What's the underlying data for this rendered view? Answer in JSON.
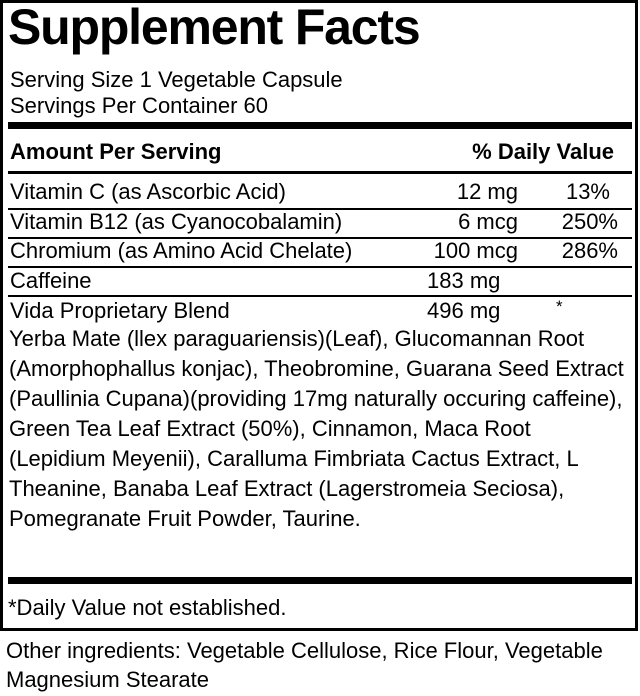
{
  "title": "Supplement Facts",
  "serving_size": "Serving Size 1 Vegetable Capsule",
  "servings_per_container": "Servings Per Container 60",
  "header": {
    "amount": "Amount Per Serving",
    "daily_value": "% Daily Value"
  },
  "rows": [
    {
      "name": "Vitamin C (as Ascorbic Acid)",
      "amount": "12 mg",
      "dv": "13%"
    },
    {
      "name": "Vitamin B12 (as Cyanocobalamin)",
      "amount": "6 mcg",
      "dv": "250%"
    },
    {
      "name": "Chromium (as Amino Acid Chelate)",
      "amount": "100 mcg",
      "dv": "286%"
    },
    {
      "name": "Caffeine",
      "amount": "183 mg",
      "dv": ""
    },
    {
      "name": "Vida Proprietary Blend",
      "amount": "496 mg",
      "dv": "*"
    }
  ],
  "blend_ingredients": "Yerba Mate (llex paraguariensis)(Leaf), Glucomannan Root (Amorphophallus konjac), Theobromine, Guarana Seed Extract (Paullinia Cupana)(providing 17mg naturally occuring caffeine), Green Tea Leaf Extract (50%), Cinnamon, Maca Root (Lepidium Meyenii), Caralluma Fimbriata Cactus Extract, L Theanine, Banaba Leaf Extract (Lagerstromeia Seciosa), Pomegranate Fruit Powder, Taurine.",
  "footnote": "*Daily Value not established.",
  "other_ingredients": "Other ingredients: Vegetable Cellulose, Rice Flour, Vegetable Magnesium Stearate"
}
